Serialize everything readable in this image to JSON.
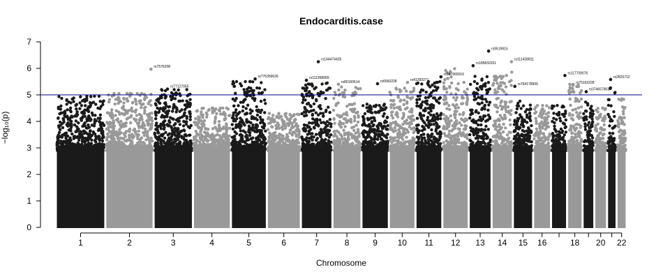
{
  "chart_data": {
    "type": "scatter",
    "subtype": "manhattan",
    "title": "Endocarditis.case",
    "xlabel": "Chromosome",
    "ylabel": "−log₁₀(p)",
    "ylim": [
      0,
      7
    ],
    "yticks": [
      0,
      1,
      2,
      3,
      4,
      5,
      6,
      7
    ],
    "threshold": 5,
    "threshold_color": "#00008b",
    "colors": [
      "#1a1a1a",
      "#999999"
    ],
    "grid": false,
    "chromosomes": [
      {
        "chr": "1",
        "start": 0,
        "end": 249,
        "label": "1",
        "peak": 4.95
      },
      {
        "chr": "2",
        "start": 249,
        "end": 492,
        "label": "2",
        "peak": 5.05
      },
      {
        "chr": "3",
        "start": 492,
        "end": 690,
        "label": "3",
        "peak": 5.2
      },
      {
        "chr": "4",
        "start": 690,
        "end": 881,
        "label": "4",
        "peak": 4.5
      },
      {
        "chr": "5",
        "start": 881,
        "end": 1062,
        "label": "5",
        "peak": 5.5
      },
      {
        "chr": "6",
        "start": 1062,
        "end": 1233,
        "label": "6",
        "peak": 4.3
      },
      {
        "chr": "7",
        "start": 1233,
        "end": 1392,
        "label": "7",
        "peak": 5.45
      },
      {
        "chr": "8",
        "start": 1392,
        "end": 1538,
        "label": "8",
        "peak": 5.3
      },
      {
        "chr": "9",
        "start": 1538,
        "end": 1676,
        "label": "9",
        "peak": 4.65
      },
      {
        "chr": "10",
        "start": 1676,
        "end": 1810,
        "label": "10",
        "peak": 5.25
      },
      {
        "chr": "11",
        "start": 1810,
        "end": 1945,
        "label": "11",
        "peak": 5.5
      },
      {
        "chr": "12",
        "start": 1945,
        "end": 2078,
        "label": "12",
        "peak": 6.0
      },
      {
        "chr": "13",
        "start": 2078,
        "end": 2193,
        "label": "13",
        "peak": 5.7
      },
      {
        "chr": "14",
        "start": 2193,
        "end": 2300,
        "label": "14",
        "peak": 5.9
      },
      {
        "chr": "15",
        "start": 2300,
        "end": 2402,
        "label": "15",
        "peak": 4.8
      },
      {
        "chr": "16",
        "start": 2402,
        "end": 2492,
        "label": "16",
        "peak": 4.6
      },
      {
        "chr": "17",
        "start": 2492,
        "end": 2573,
        "label": "",
        "peak": 4.6
      },
      {
        "chr": "18",
        "start": 2573,
        "end": 2651,
        "label": "18",
        "peak": 5.4
      },
      {
        "chr": "19",
        "start": 2651,
        "end": 2710,
        "label": "",
        "peak": 4.85
      },
      {
        "chr": "20",
        "start": 2710,
        "end": 2774,
        "label": "20",
        "peak": 4.5
      },
      {
        "chr": "21",
        "start": 2774,
        "end": 2822,
        "label": "",
        "peak": 5.3
      },
      {
        "chr": "22",
        "start": 2822,
        "end": 2873,
        "label": "22",
        "peak": 4.85
      }
    ],
    "top_snps": [
      {
        "label": "rs7576208",
        "chr": "2",
        "pos": 230,
        "y": 5.97
      },
      {
        "label": "rs77127055",
        "chr": "3",
        "pos": 70,
        "y": 5.22
      },
      {
        "label": "rs776359626",
        "chr": "5",
        "pos": 122,
        "y": 5.6
      },
      {
        "label": "rs144474426",
        "chr": "7",
        "pos": 88,
        "y": 6.25
      },
      {
        "label": "rs111368999",
        "chr": "7",
        "pos": 28,
        "y": 5.55
      },
      {
        "label": "rs80160614",
        "chr": "8",
        "pos": 30,
        "y": 5.4
      },
      {
        "label": "rs6560228",
        "chr": "9",
        "pos": 81,
        "y": 5.42
      },
      {
        "label": "rs41283271",
        "chr": "10",
        "pos": 94,
        "y": 5.47
      },
      {
        "label": "rs147965016",
        "chr": "11",
        "pos": 128,
        "y": 5.68
      },
      {
        "label": "rs185832201",
        "chr": "13",
        "pos": 22,
        "y": 6.1
      },
      {
        "label": "rs9519915",
        "chr": "13",
        "pos": 100,
        "y": 6.65
      },
      {
        "label": "rs111428811",
        "chr": "14",
        "pos": 100,
        "y": 6.25
      },
      {
        "label": "rs764178906",
        "chr": "15",
        "pos": 10,
        "y": 5.32
      },
      {
        "label": "rs117709076",
        "chr": "17",
        "pos": 70,
        "y": 5.73
      },
      {
        "label": "rs75163228",
        "chr": "18",
        "pos": 30,
        "y": 5.37
      },
      {
        "label": "rs374657903",
        "chr": "19",
        "pos": 18,
        "y": 5.12
      },
      {
        "label": "rs2825712",
        "chr": "21",
        "pos": 18,
        "y": 5.58
      }
    ]
  }
}
